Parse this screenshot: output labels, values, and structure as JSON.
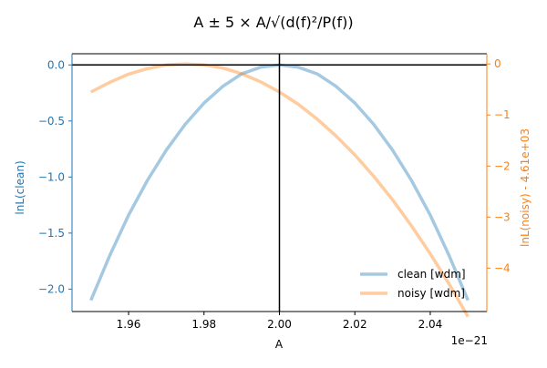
{
  "chart_data": {
    "type": "line",
    "title": "A ± 5 × A/√(d(f)²/P(f))",
    "xlabel": "A",
    "x_offset_label": "1e−21",
    "ylabel_left": "lnL(clean)",
    "ylabel_right": "lnL(noisy) - 4.61e+03",
    "xlim": [
      1.945,
      2.055
    ],
    "ylim_left": [
      -2.2,
      0.1
    ],
    "ylim_right": [
      -4.85,
      0.2
    ],
    "x_ticks": [
      1.96,
      1.98,
      2.0,
      2.02,
      2.04
    ],
    "x_tick_labels": [
      "1.96",
      "1.98",
      "2.00",
      "2.02",
      "2.04"
    ],
    "y_left_ticks": [
      0.0,
      -0.5,
      -1.0,
      -1.5,
      -2.0
    ],
    "y_left_tick_labels": [
      "0.0",
      "−0.5",
      "−1.0",
      "−1.5",
      "−2.0"
    ],
    "y_right_ticks": [
      0,
      -1,
      -2,
      -3,
      -4
    ],
    "y_right_tick_labels": [
      "0",
      "−1",
      "−2",
      "−3",
      "−4"
    ],
    "reference_lines": {
      "x": 2.0,
      "y_left": 0.0
    },
    "legend_position": "lower-right",
    "colors": {
      "clean": "#1f77b4",
      "noisy": "#ff7f0e",
      "left_axis": "#1f77b4",
      "right_axis": "#ff7f0e"
    },
    "series": [
      {
        "name": "clean [wdm]",
        "axis": "left",
        "x": [
          1.95,
          1.955,
          1.96,
          1.965,
          1.97,
          1.975,
          1.98,
          1.985,
          1.99,
          1.995,
          2.0,
          2.005,
          2.01,
          2.015,
          2.02,
          2.025,
          2.03,
          2.035,
          2.04,
          2.045,
          2.05
        ],
        "y": [
          -2.1,
          -1.7,
          -1.34,
          -1.03,
          -0.76,
          -0.53,
          -0.34,
          -0.19,
          -0.08,
          -0.02,
          0.0,
          -0.02,
          -0.08,
          -0.19,
          -0.34,
          -0.53,
          -0.76,
          -1.03,
          -1.34,
          -1.7,
          -2.1
        ]
      },
      {
        "name": "noisy [wdm]",
        "axis": "right",
        "x": [
          1.95,
          1.955,
          1.96,
          1.965,
          1.97,
          1.975,
          1.98,
          1.985,
          1.99,
          1.995,
          2.0,
          2.005,
          2.01,
          2.015,
          2.02,
          2.025,
          2.03,
          2.035,
          2.04,
          2.045,
          2.05
        ],
        "y": [
          -0.55,
          -0.36,
          -0.2,
          -0.09,
          -0.02,
          0.0,
          -0.02,
          -0.08,
          -0.19,
          -0.35,
          -0.55,
          -0.79,
          -1.08,
          -1.41,
          -1.78,
          -2.2,
          -2.66,
          -3.17,
          -3.72,
          -4.31,
          -4.95
        ]
      }
    ]
  }
}
